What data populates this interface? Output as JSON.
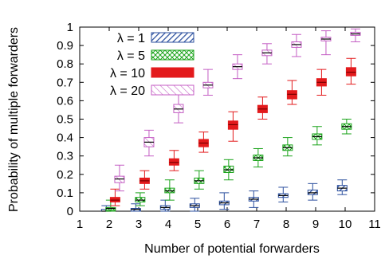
{
  "chart_data": {
    "type": "boxplot",
    "xlabel": "Number of potential forwarders",
    "ylabel": "Probability of multiple forwarders",
    "xlim": [
      1,
      11
    ],
    "ylim": [
      0,
      1
    ],
    "xticks": [
      "1",
      "2",
      "3",
      "4",
      "5",
      "6",
      "7",
      "8",
      "9",
      "10",
      "11"
    ],
    "yticks": [
      "0",
      "0.1",
      "0.2",
      "0.3",
      "0.4",
      "0.5",
      "0.6",
      "0.7",
      "0.8",
      "0.9",
      "1"
    ],
    "legend_position": "top-left",
    "series": [
      {
        "name": "λ = 1",
        "color": "#2b4f9e",
        "fill": "hatch",
        "boxes": [
          {
            "x": 2,
            "whisker_low": 0.0,
            "q1": 0.0,
            "median": 0.0,
            "q3": 0.01,
            "whisker_high": 0.03
          },
          {
            "x": 3,
            "whisker_low": 0.0,
            "q1": 0.0,
            "median": 0.01,
            "q3": 0.015,
            "whisker_high": 0.04
          },
          {
            "x": 4,
            "whisker_low": 0.0,
            "q1": 0.01,
            "median": 0.02,
            "q3": 0.03,
            "whisker_high": 0.06
          },
          {
            "x": 5,
            "whisker_low": 0.0,
            "q1": 0.02,
            "median": 0.03,
            "q3": 0.04,
            "whisker_high": 0.07
          },
          {
            "x": 6,
            "whisker_low": 0.01,
            "q1": 0.035,
            "median": 0.045,
            "q3": 0.055,
            "whisker_high": 0.1
          },
          {
            "x": 7,
            "whisker_low": 0.02,
            "q1": 0.055,
            "median": 0.065,
            "q3": 0.075,
            "whisker_high": 0.11
          },
          {
            "x": 8,
            "whisker_low": 0.05,
            "q1": 0.075,
            "median": 0.085,
            "q3": 0.095,
            "whisker_high": 0.13
          },
          {
            "x": 9,
            "whisker_low": 0.06,
            "q1": 0.09,
            "median": 0.1,
            "q3": 0.115,
            "whisker_high": 0.15
          },
          {
            "x": 10,
            "whisker_low": 0.09,
            "q1": 0.11,
            "median": 0.125,
            "q3": 0.14,
            "whisker_high": 0.17
          }
        ]
      },
      {
        "name": "λ = 5",
        "color": "#1aa31a",
        "fill": "crosshatch",
        "boxes": [
          {
            "x": 2,
            "whisker_low": 0.0,
            "q1": 0.005,
            "median": 0.015,
            "q3": 0.02,
            "whisker_high": 0.06
          },
          {
            "x": 3,
            "whisker_low": 0.03,
            "q1": 0.05,
            "median": 0.06,
            "q3": 0.075,
            "whisker_high": 0.1
          },
          {
            "x": 4,
            "whisker_low": 0.06,
            "q1": 0.1,
            "median": 0.11,
            "q3": 0.125,
            "whisker_high": 0.17
          },
          {
            "x": 5,
            "whisker_low": 0.12,
            "q1": 0.15,
            "median": 0.165,
            "q3": 0.18,
            "whisker_high": 0.22
          },
          {
            "x": 6,
            "whisker_low": 0.17,
            "q1": 0.21,
            "median": 0.225,
            "q3": 0.245,
            "whisker_high": 0.28
          },
          {
            "x": 7,
            "whisker_low": 0.24,
            "q1": 0.275,
            "median": 0.29,
            "q3": 0.305,
            "whisker_high": 0.34
          },
          {
            "x": 8,
            "whisker_low": 0.3,
            "q1": 0.33,
            "median": 0.345,
            "q3": 0.36,
            "whisker_high": 0.4
          },
          {
            "x": 9,
            "whisker_low": 0.36,
            "q1": 0.39,
            "median": 0.405,
            "q3": 0.42,
            "whisker_high": 0.46
          },
          {
            "x": 10,
            "whisker_low": 0.42,
            "q1": 0.445,
            "median": 0.46,
            "q3": 0.475,
            "whisker_high": 0.5
          }
        ]
      },
      {
        "name": "λ = 10",
        "color": "#e31a1c",
        "fill": "solid",
        "boxes": [
          {
            "x": 2,
            "whisker_low": 0.03,
            "q1": 0.05,
            "median": 0.06,
            "q3": 0.075,
            "whisker_high": 0.12
          },
          {
            "x": 3,
            "whisker_low": 0.12,
            "q1": 0.15,
            "median": 0.165,
            "q3": 0.18,
            "whisker_high": 0.22
          },
          {
            "x": 4,
            "whisker_low": 0.22,
            "q1": 0.25,
            "median": 0.265,
            "q3": 0.285,
            "whisker_high": 0.33
          },
          {
            "x": 5,
            "whisker_low": 0.32,
            "q1": 0.35,
            "median": 0.37,
            "q3": 0.39,
            "whisker_high": 0.43
          },
          {
            "x": 6,
            "whisker_low": 0.38,
            "q1": 0.445,
            "median": 0.47,
            "q3": 0.49,
            "whisker_high": 0.54
          },
          {
            "x": 7,
            "whisker_low": 0.5,
            "q1": 0.535,
            "median": 0.555,
            "q3": 0.575,
            "whisker_high": 0.62
          },
          {
            "x": 8,
            "whisker_low": 0.58,
            "q1": 0.61,
            "median": 0.635,
            "q3": 0.655,
            "whisker_high": 0.71
          },
          {
            "x": 9,
            "whisker_low": 0.63,
            "q1": 0.68,
            "median": 0.7,
            "q3": 0.72,
            "whisker_high": 0.77
          },
          {
            "x": 10,
            "whisker_low": 0.69,
            "q1": 0.735,
            "median": 0.755,
            "q3": 0.78,
            "whisker_high": 0.83
          }
        ]
      },
      {
        "name": "λ = 20",
        "color": "#c45ec4",
        "fill": "diagonal",
        "boxes": [
          {
            "x": 2,
            "whisker_low": 0.11,
            "q1": 0.155,
            "median": 0.175,
            "q3": 0.19,
            "whisker_high": 0.25
          },
          {
            "x": 3,
            "whisker_low": 0.3,
            "q1": 0.35,
            "median": 0.375,
            "q3": 0.4,
            "whisker_high": 0.44
          },
          {
            "x": 4,
            "whisker_low": 0.48,
            "q1": 0.535,
            "median": 0.555,
            "q3": 0.58,
            "whisker_high": 0.64
          },
          {
            "x": 5,
            "whisker_low": 0.63,
            "q1": 0.67,
            "median": 0.685,
            "q3": 0.7,
            "whisker_high": 0.77
          },
          {
            "x": 6,
            "whisker_low": 0.72,
            "q1": 0.77,
            "median": 0.785,
            "q3": 0.8,
            "whisker_high": 0.85
          },
          {
            "x": 7,
            "whisker_low": 0.8,
            "q1": 0.845,
            "median": 0.86,
            "q3": 0.875,
            "whisker_high": 0.91
          },
          {
            "x": 8,
            "whisker_low": 0.84,
            "q1": 0.89,
            "median": 0.905,
            "q3": 0.92,
            "whisker_high": 0.96
          },
          {
            "x": 9,
            "whisker_low": 0.85,
            "q1": 0.925,
            "median": 0.935,
            "q3": 0.945,
            "whisker_high": 0.98
          },
          {
            "x": 10,
            "whisker_low": 0.92,
            "q1": 0.955,
            "median": 0.963,
            "q3": 0.972,
            "whisker_high": 0.99
          }
        ]
      }
    ]
  }
}
